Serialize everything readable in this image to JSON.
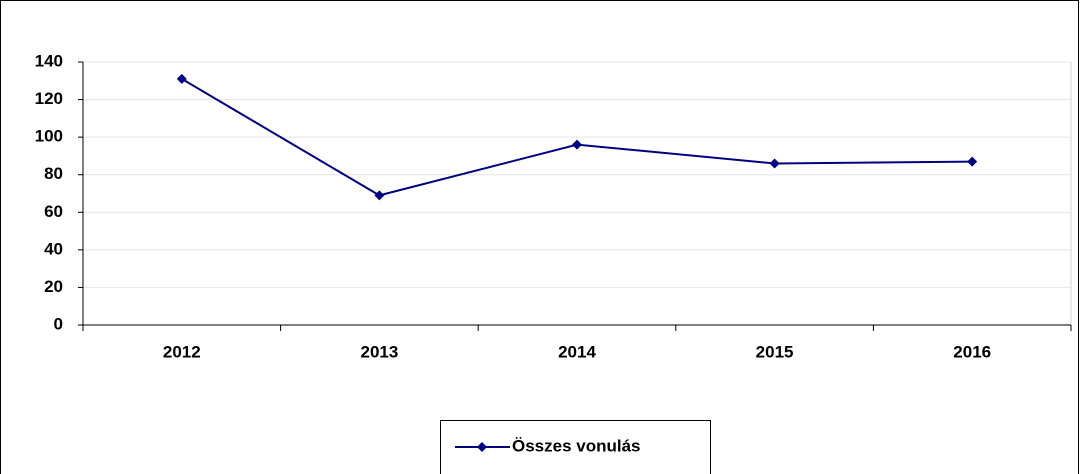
{
  "chart_data": {
    "type": "line",
    "categories": [
      "2012",
      "2013",
      "2014",
      "2015",
      "2016"
    ],
    "series": [
      {
        "name": "Összes vonulás",
        "color": "#000080",
        "values": [
          131,
          69,
          96,
          86,
          87
        ]
      }
    ],
    "ylim": [
      0,
      140
    ],
    "yticks": [
      0,
      20,
      40,
      60,
      80,
      100,
      120,
      140
    ],
    "grid": true,
    "legend": "bottom"
  }
}
